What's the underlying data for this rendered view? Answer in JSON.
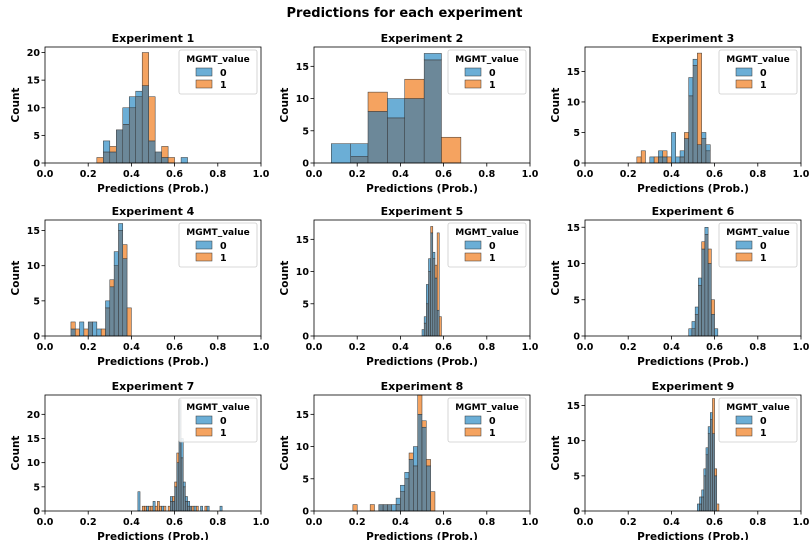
{
  "figure": {
    "title": "Predictions for each experiment",
    "colors": {
      "series0": "#6baed6",
      "series1": "#f5a360",
      "overlap": "#6c8899",
      "edge": "#333333"
    }
  },
  "chart_data": [
    {
      "type": "histogram",
      "title": "Experiment 1",
      "xlabel": "Predictions (Prob.)",
      "ylabel": "Count",
      "xlim": [
        0,
        1
      ],
      "ylim": [
        0,
        21
      ],
      "yticks": [
        0,
        5,
        10,
        15,
        20
      ],
      "xticks": [
        0.0,
        0.2,
        0.4,
        0.6,
        0.8,
        1.0
      ],
      "legend": {
        "title": "MGMT_value",
        "entries": [
          "0",
          "1"
        ],
        "position": "top-right"
      },
      "bin_edges": [
        0.24,
        0.27,
        0.3,
        0.33,
        0.36,
        0.39,
        0.42,
        0.45,
        0.48,
        0.51,
        0.54,
        0.57,
        0.6,
        0.63,
        0.66
      ],
      "series": [
        {
          "name": "0",
          "values": [
            0,
            4,
            2,
            6,
            10,
            12,
            13,
            14,
            4,
            2,
            1,
            0,
            0,
            1
          ]
        },
        {
          "name": "1",
          "values": [
            1,
            2,
            3,
            6,
            7,
            10,
            12,
            20,
            12,
            2,
            3,
            1,
            0,
            0
          ]
        }
      ]
    },
    {
      "type": "histogram",
      "title": "Experiment 2",
      "xlabel": "Predictions (Prob.)",
      "ylabel": "Count",
      "xlim": [
        0,
        1
      ],
      "ylim": [
        0,
        18
      ],
      "yticks": [
        0,
        5,
        10,
        15
      ],
      "xticks": [
        0.0,
        0.2,
        0.4,
        0.6,
        0.8,
        1.0
      ],
      "legend": {
        "title": "MGMT_value",
        "entries": [
          "0",
          "1"
        ],
        "position": "top-right"
      },
      "bin_edges": [
        0.08,
        0.17,
        0.25,
        0.34,
        0.42,
        0.51,
        0.59,
        0.68
      ],
      "series": [
        {
          "name": "0",
          "values": [
            3,
            3,
            8,
            10,
            10,
            17,
            0
          ]
        },
        {
          "name": "1",
          "values": [
            0,
            1,
            11,
            7,
            13,
            16,
            4
          ]
        }
      ]
    },
    {
      "type": "histogram",
      "title": "Experiment 3",
      "xlabel": "Predictions (Prob.)",
      "ylabel": "Count",
      "xlim": [
        0,
        1
      ],
      "ylim": [
        0,
        19
      ],
      "yticks": [
        0,
        5,
        10,
        15
      ],
      "xticks": [
        0.0,
        0.2,
        0.4,
        0.6,
        0.8,
        1.0
      ],
      "legend": {
        "title": "MGMT_value",
        "entries": [
          "0",
          "1"
        ],
        "position": "top-right"
      },
      "bin_edges": [
        0.24,
        0.26,
        0.28,
        0.3,
        0.32,
        0.34,
        0.36,
        0.38,
        0.4,
        0.42,
        0.44,
        0.46,
        0.48,
        0.5,
        0.52,
        0.54,
        0.56,
        0.58,
        0.6
      ],
      "series": [
        {
          "name": "0",
          "values": [
            0,
            0,
            0,
            1,
            0,
            2,
            1,
            0,
            5,
            1,
            2,
            4,
            14,
            17,
            3,
            5,
            3,
            0
          ]
        },
        {
          "name": "1",
          "values": [
            1,
            2,
            0,
            0,
            1,
            1,
            2,
            1,
            0,
            0,
            1,
            5,
            11,
            16,
            18,
            4,
            2,
            0
          ]
        }
      ]
    },
    {
      "type": "histogram",
      "title": "Experiment 4",
      "xlabel": "Predictions (Prob.)",
      "ylabel": "Count",
      "xlim": [
        0,
        1
      ],
      "ylim": [
        0,
        16.5
      ],
      "yticks": [
        0,
        5,
        10,
        15
      ],
      "xticks": [
        0.0,
        0.2,
        0.4,
        0.6,
        0.8,
        1.0
      ],
      "legend": {
        "title": "MGMT_value",
        "entries": [
          "0",
          "1"
        ],
        "position": "top-right"
      },
      "bin_edges": [
        0.12,
        0.14,
        0.16,
        0.18,
        0.2,
        0.22,
        0.24,
        0.26,
        0.28,
        0.3,
        0.32,
        0.34,
        0.36,
        0.38,
        0.4
      ],
      "series": [
        {
          "name": "0",
          "values": [
            1,
            0,
            2,
            0,
            2,
            2,
            1,
            0,
            5,
            7,
            12,
            16,
            11,
            0
          ]
        },
        {
          "name": "1",
          "values": [
            2,
            1,
            0,
            1,
            2,
            0,
            0,
            1,
            4,
            8,
            10,
            15,
            13,
            4
          ]
        }
      ]
    },
    {
      "type": "histogram",
      "title": "Experiment 5",
      "xlabel": "Predictions (Prob.)",
      "ylabel": "Count",
      "xlim": [
        0,
        1
      ],
      "ylim": [
        0,
        18
      ],
      "yticks": [
        0,
        5,
        10,
        15
      ],
      "xticks": [
        0.0,
        0.2,
        0.4,
        0.6,
        0.8,
        1.0
      ],
      "legend": {
        "title": "MGMT_value",
        "entries": [
          "0",
          "1"
        ],
        "position": "top-right"
      },
      "bin_edges": [
        0.5,
        0.51,
        0.52,
        0.53,
        0.54,
        0.55,
        0.56,
        0.57,
        0.58,
        0.59,
        0.6
      ],
      "series": [
        {
          "name": "0",
          "values": [
            1,
            3,
            8,
            12,
            16,
            13,
            9,
            4,
            0,
            0
          ]
        },
        {
          "name": "1",
          "values": [
            0,
            2,
            5,
            10,
            17,
            12,
            11,
            16,
            3,
            0
          ]
        }
      ]
    },
    {
      "type": "histogram",
      "title": "Experiment 6",
      "xlabel": "Predictions (Prob.)",
      "ylabel": "Count",
      "xlim": [
        0,
        1
      ],
      "ylim": [
        0,
        16
      ],
      "yticks": [
        0,
        5,
        10,
        15
      ],
      "xticks": [
        0.0,
        0.2,
        0.4,
        0.6,
        0.8,
        1.0
      ],
      "legend": {
        "title": "MGMT_value",
        "entries": [
          "0",
          "1"
        ],
        "position": "top-right"
      },
      "bin_edges": [
        0.48,
        0.495,
        0.51,
        0.525,
        0.54,
        0.555,
        0.57,
        0.585,
        0.6,
        0.615
      ],
      "series": [
        {
          "name": "0",
          "values": [
            1,
            2,
            4,
            8,
            12,
            15,
            10,
            3,
            1
          ]
        },
        {
          "name": "1",
          "values": [
            0,
            1,
            3,
            7,
            13,
            14,
            12,
            5,
            0
          ]
        }
      ]
    },
    {
      "type": "histogram",
      "title": "Experiment 7",
      "xlabel": "Predictions (Prob.)",
      "ylabel": "Count",
      "xlim": [
        0,
        1
      ],
      "ylim": [
        0,
        24
      ],
      "yticks": [
        0,
        5,
        10,
        15,
        20
      ],
      "xticks": [
        0.0,
        0.2,
        0.4,
        0.6,
        0.8,
        1.0
      ],
      "legend": {
        "title": "MGMT_value",
        "entries": [
          "0",
          "1"
        ],
        "position": "top-right"
      },
      "bin_edges": [
        0.43,
        0.44,
        0.45,
        0.46,
        0.47,
        0.48,
        0.49,
        0.5,
        0.51,
        0.52,
        0.53,
        0.54,
        0.55,
        0.56,
        0.57,
        0.58,
        0.59,
        0.6,
        0.61,
        0.62,
        0.63,
        0.64,
        0.65,
        0.66,
        0.67,
        0.68,
        0.69,
        0.7,
        0.71,
        0.72,
        0.73,
        0.74,
        0.75,
        0.76,
        0.77,
        0.78,
        0.79,
        0.8,
        0.81,
        0.82
      ],
      "series": [
        {
          "name": "0",
          "values": [
            4,
            0,
            0,
            0,
            1,
            0,
            0,
            2,
            0,
            0,
            0,
            1,
            0,
            0,
            0,
            3,
            2,
            5,
            10,
            23,
            15,
            6,
            3,
            2,
            1,
            0,
            1,
            0,
            0,
            1,
            0,
            0,
            1,
            0,
            0,
            0,
            0,
            0,
            1
          ]
        },
        {
          "name": "1",
          "values": [
            0,
            0,
            1,
            1,
            0,
            1,
            1,
            0,
            1,
            2,
            1,
            0,
            1,
            0,
            1,
            2,
            3,
            6,
            12,
            23,
            11,
            5,
            2,
            1,
            1,
            1,
            0,
            1,
            0,
            0,
            0,
            1,
            0,
            0,
            0,
            0,
            0,
            0,
            0
          ]
        }
      ]
    },
    {
      "type": "histogram",
      "title": "Experiment 8",
      "xlabel": "Predictions (Prob.)",
      "ylabel": "Count",
      "xlim": [
        0,
        1
      ],
      "ylim": [
        0,
        18
      ],
      "yticks": [
        0,
        5,
        10,
        15
      ],
      "xticks": [
        0.0,
        0.2,
        0.4,
        0.6,
        0.8,
        1.0
      ],
      "legend": {
        "title": "MGMT_value",
        "entries": [
          "0",
          "1"
        ],
        "position": "top-right"
      },
      "bin_edges": [
        0.18,
        0.2,
        0.22,
        0.24,
        0.26,
        0.28,
        0.3,
        0.32,
        0.34,
        0.36,
        0.38,
        0.4,
        0.42,
        0.44,
        0.46,
        0.48,
        0.5,
        0.52,
        0.54,
        0.56
      ],
      "series": [
        {
          "name": "0",
          "values": [
            0,
            0,
            0,
            0,
            0,
            0,
            1,
            1,
            1,
            1,
            2,
            4,
            6,
            8,
            10,
            15,
            13,
            7,
            0
          ]
        },
        {
          "name": "1",
          "values": [
            1,
            0,
            0,
            0,
            1,
            0,
            1,
            1,
            1,
            0,
            1,
            3,
            5,
            9,
            7,
            18,
            14,
            8,
            3
          ]
        }
      ]
    },
    {
      "type": "histogram",
      "title": "Experiment 9",
      "xlabel": "Predictions (Prob.)",
      "ylabel": "Count",
      "xlim": [
        0,
        1
      ],
      "ylim": [
        0,
        16.5
      ],
      "yticks": [
        0,
        5,
        10,
        15
      ],
      "xticks": [
        0.0,
        0.2,
        0.4,
        0.6,
        0.8,
        1.0
      ],
      "legend": {
        "title": "MGMT_value",
        "entries": [
          "0",
          "1"
        ],
        "position": "top-right"
      },
      "bin_edges": [
        0.52,
        0.53,
        0.54,
        0.55,
        0.56,
        0.57,
        0.58,
        0.59,
        0.6,
        0.61,
        0.62
      ],
      "series": [
        {
          "name": "0",
          "values": [
            1,
            2,
            3,
            6,
            9,
            12,
            14,
            11,
            5,
            0
          ]
        },
        {
          "name": "1",
          "values": [
            0,
            1,
            2,
            5,
            8,
            11,
            13,
            16,
            6,
            1
          ]
        }
      ]
    }
  ]
}
